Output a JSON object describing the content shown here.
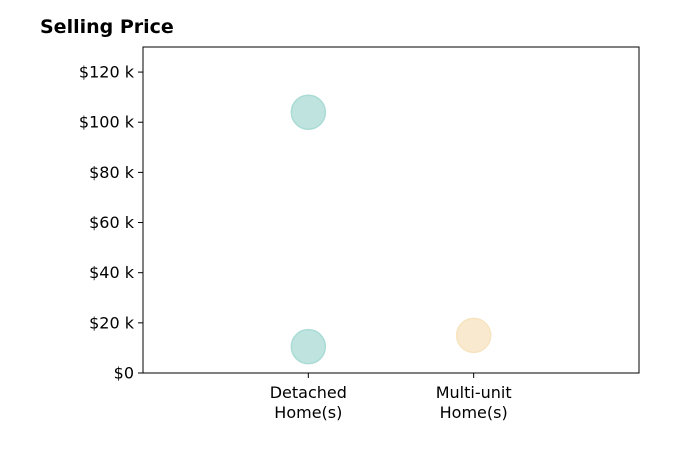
{
  "chart_data": {
    "type": "scatter",
    "title": "Selling Price",
    "xlabel": "",
    "ylabel": "",
    "categories": [
      "Detached\nHome(s)",
      "Multi-unit\nHome(s)"
    ],
    "y_ticks": [
      0,
      20000,
      40000,
      60000,
      80000,
      100000,
      120000
    ],
    "y_tick_labels": [
      "$0",
      "$20 k",
      "$40 k",
      "$60 k",
      "$80 k",
      "$100 k",
      "$120 k"
    ],
    "ylim": [
      0,
      130000
    ],
    "x_range": [
      -1,
      2
    ],
    "grid": false,
    "points": [
      {
        "category": "Detached\nHome(s)",
        "value": 104000,
        "color": "#aadbd5"
      },
      {
        "category": "Detached\nHome(s)",
        "value": 10500,
        "color": "#aadbd5"
      },
      {
        "category": "Multi-unit\nHome(s)",
        "value": 15000,
        "color": "#f7e3bf"
      }
    ]
  }
}
